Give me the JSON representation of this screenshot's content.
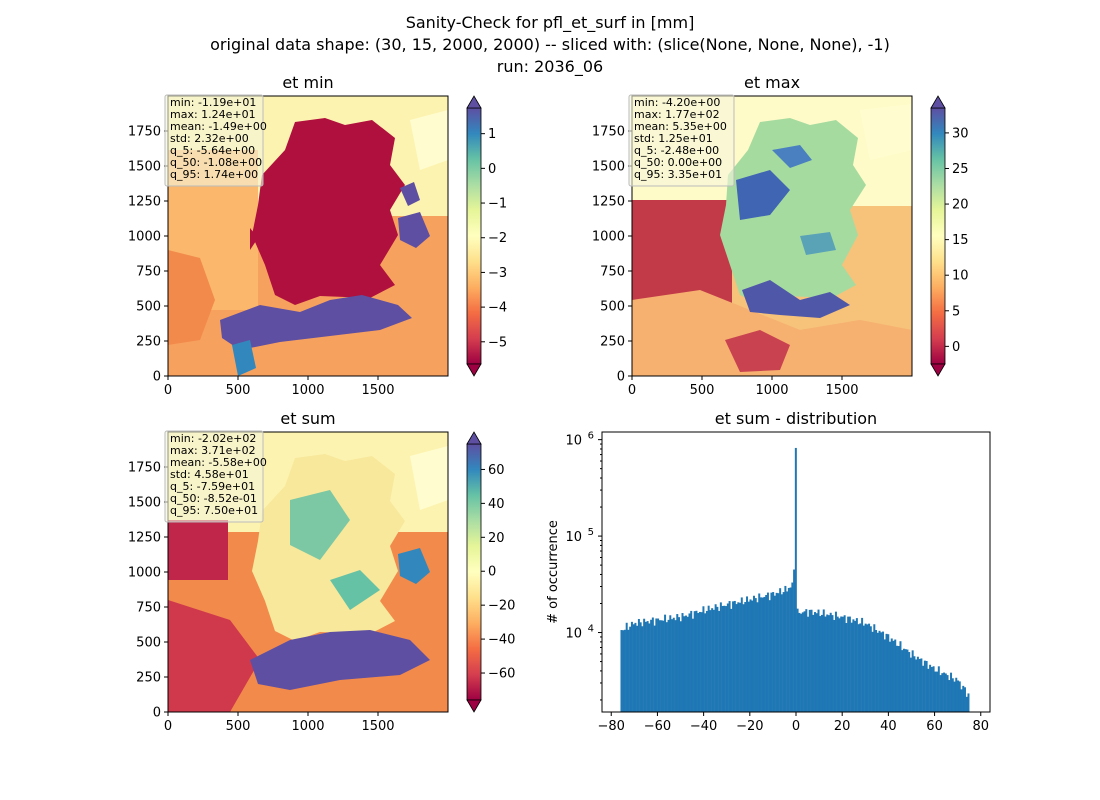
{
  "figure": {
    "suptitle": [
      "Sanity-Check for pfl_et_surf in [mm]",
      "original data shape: (30, 15, 2000, 2000) -- sliced with: (slice(None, None, None), -1)",
      "run: 2036_06"
    ]
  },
  "chart_data": [
    {
      "type": "heatmap",
      "title": "et min",
      "xlim": [
        0,
        2000
      ],
      "ylim": [
        0,
        2000
      ],
      "x_ticks": [
        0,
        500,
        1000,
        1500
      ],
      "y_ticks": [
        0,
        250,
        500,
        750,
        1000,
        1250,
        1500,
        1750
      ],
      "colormap": "Spectral",
      "colorbar_range": [
        -5.64,
        1.74
      ],
      "colorbar_ticks": [
        -5,
        -4,
        -3,
        -2,
        -1,
        0,
        1
      ],
      "colorbar_extend": "both",
      "stats": [
        "min: -1.19e+01",
        "max: 1.24e+01",
        "mean: -1.49e+00",
        "std: 2.32e+00",
        "q_5: -5.64e+00",
        "q_50: -1.08e+00",
        "q_95: 1.74e+00"
      ]
    },
    {
      "type": "heatmap",
      "title": "et max",
      "xlim": [
        0,
        2000
      ],
      "ylim": [
        0,
        2000
      ],
      "x_ticks": [
        0,
        500,
        1000,
        1500
      ],
      "y_ticks": [
        0,
        250,
        500,
        750,
        1000,
        1250,
        1500,
        1750
      ],
      "colormap": "Spectral",
      "colorbar_range": [
        -2.48,
        33.5
      ],
      "colorbar_ticks": [
        0,
        5,
        10,
        15,
        20,
        25,
        30
      ],
      "colorbar_extend": "both",
      "stats": [
        "min: -4.20e+00",
        "max: 1.77e+02",
        "mean: 5.35e+00",
        "std: 1.25e+01",
        "q_5: -2.48e+00",
        "q_50: 0.00e+00",
        "q_95: 3.35e+01"
      ]
    },
    {
      "type": "heatmap",
      "title": "et sum",
      "xlim": [
        0,
        2000
      ],
      "ylim": [
        0,
        2000
      ],
      "x_ticks": [
        0,
        500,
        1000,
        1500
      ],
      "y_ticks": [
        0,
        250,
        500,
        750,
        1000,
        1250,
        1500,
        1750
      ],
      "colormap": "Spectral",
      "colorbar_range": [
        -75.9,
        75.0
      ],
      "colorbar_ticks": [
        -60,
        -40,
        -20,
        0,
        20,
        40,
        60
      ],
      "colorbar_extend": "both",
      "stats": [
        "min: -2.02e+02",
        "max: 3.71e+02",
        "mean: -5.58e+00",
        "std: 4.58e+01",
        "q_5: -7.59e+01",
        "q_50: -8.52e-01",
        "q_95: 7.50e+01"
      ]
    },
    {
      "type": "bar",
      "title": "et sum - distribution",
      "ylabel": "# of occurrence",
      "yscale": "log",
      "color": "#1f77b4",
      "xlim": [
        -84,
        84
      ],
      "ylim": [
        1500,
        1200000
      ],
      "x_ticks": [
        -80,
        -60,
        -40,
        -20,
        0,
        20,
        40,
        60,
        80
      ],
      "y_ticks": [
        10000,
        100000,
        1000000
      ],
      "y_tick_labels": [
        {
          "base": "10",
          "exp": "4"
        },
        {
          "base": "10",
          "exp": "5"
        },
        {
          "base": "10",
          "exp": "6"
        }
      ],
      "bin_edges_range": [
        -76,
        75
      ],
      "bin_anchors": [
        [
          -76,
          10500
        ],
        [
          -70,
          12500
        ],
        [
          -60,
          13500
        ],
        [
          -50,
          14500
        ],
        [
          -40,
          17000
        ],
        [
          -30,
          19500
        ],
        [
          -20,
          22000
        ],
        [
          -10,
          25000
        ],
        [
          -4,
          28000
        ],
        [
          -1,
          32000
        ],
        [
          0,
          16000
        ],
        [
          5,
          16500
        ],
        [
          10,
          16000
        ],
        [
          20,
          14500
        ],
        [
          30,
          12500
        ],
        [
          40,
          9000
        ],
        [
          50,
          6000
        ],
        [
          60,
          4200
        ],
        [
          70,
          3200
        ],
        [
          75,
          2200
        ]
      ],
      "peak_bins": [
        {
          "x": -1,
          "value": 45000
        },
        {
          "x": 0,
          "value": 820000
        }
      ]
    }
  ]
}
